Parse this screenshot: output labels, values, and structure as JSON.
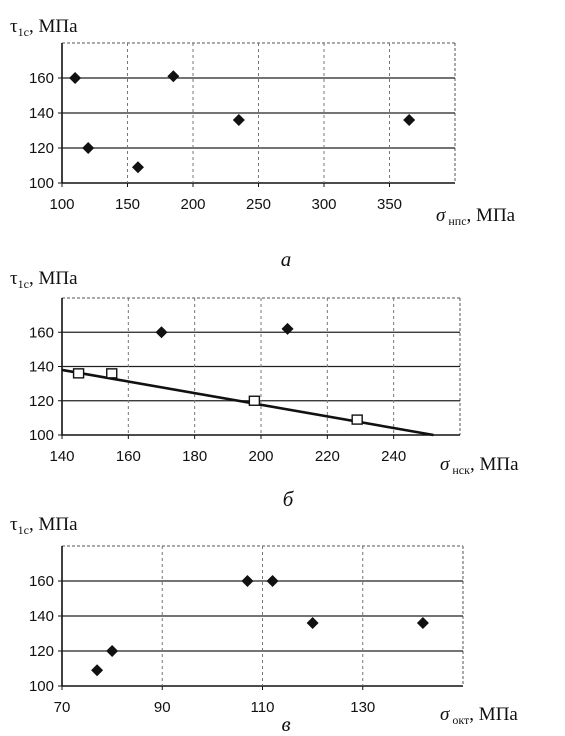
{
  "chart_data": [
    {
      "type": "scatter",
      "panel_label": "а",
      "ylabel": {
        "main": "τ",
        "sub": "1c",
        "unit": ", МПа"
      },
      "xlabel": {
        "main": "σ",
        "sub": "нпс",
        "unit": ", МПа"
      },
      "xlim": [
        100,
        400
      ],
      "ylim": [
        100,
        180
      ],
      "xticks": [
        100,
        150,
        200,
        250,
        300,
        350
      ],
      "yticks": [
        100,
        120,
        140,
        160
      ],
      "grid": true,
      "series": [
        {
          "marker": "diamond",
          "points": [
            [
              110,
              160
            ],
            [
              120,
              120
            ],
            [
              158,
              109
            ],
            [
              185,
              161
            ],
            [
              235,
              136
            ],
            [
              365,
              136
            ]
          ]
        }
      ]
    },
    {
      "type": "scatter",
      "panel_label": "б",
      "ylabel": {
        "main": "τ",
        "sub": "1c",
        "unit": ", МПа"
      },
      "xlabel": {
        "main": "σ",
        "sub": "нск",
        "unit": ", МПа"
      },
      "xlim": [
        140,
        260
      ],
      "ylim": [
        100,
        180
      ],
      "xticks": [
        140,
        160,
        180,
        200,
        220,
        240
      ],
      "yticks": [
        100,
        120,
        140,
        160
      ],
      "grid": true,
      "series": [
        {
          "marker": "diamond",
          "points": [
            [
              170,
              160
            ],
            [
              208,
              162
            ]
          ]
        },
        {
          "marker": "square",
          "points": [
            [
              145,
              136
            ],
            [
              155,
              136
            ],
            [
              198,
              120
            ],
            [
              229,
              109
            ]
          ]
        }
      ],
      "trendline": {
        "from": [
          140,
          138
        ],
        "to": [
          252,
          100
        ]
      }
    },
    {
      "type": "scatter",
      "panel_label": "в",
      "ylabel": {
        "main": "τ",
        "sub": "1c",
        "unit": ", МПа"
      },
      "xlabel": {
        "main": "σ",
        "sub": "окт",
        "unit": ", МПа"
      },
      "xlim": [
        70,
        150
      ],
      "ylim": [
        100,
        180
      ],
      "xticks": [
        70,
        90,
        110,
        130
      ],
      "yticks": [
        100,
        120,
        140,
        160
      ],
      "grid": true,
      "series": [
        {
          "marker": "diamond",
          "points": [
            [
              77,
              109
            ],
            [
              80,
              120
            ],
            [
              107,
              160
            ],
            [
              112,
              160
            ],
            [
              120,
              136
            ],
            [
              142,
              136
            ]
          ]
        }
      ]
    }
  ]
}
